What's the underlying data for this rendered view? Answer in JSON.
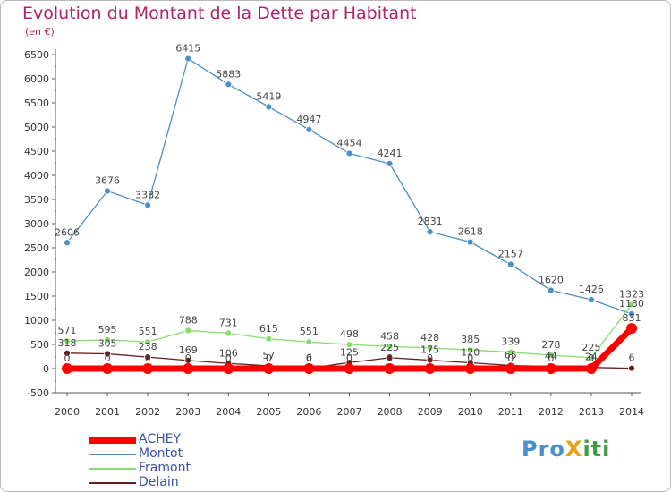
{
  "title": "Evolution du Montant de la Dette par Habitant",
  "subtitle": "(en €)",
  "logo": {
    "part1": "Pro",
    "part2": "X",
    "part3": "iti"
  },
  "chart_data": {
    "type": "line",
    "title": "Evolution du Montant de la Dette par Habitant",
    "ylabel": "(en €)",
    "x": [
      "2000",
      "2001",
      "2002",
      "2003",
      "2004",
      "2005",
      "2006",
      "2007",
      "2008",
      "2009",
      "2010",
      "2011",
      "2012",
      "2013",
      "2014"
    ],
    "ylim": [
      -500,
      6500
    ],
    "yticks": [
      -500,
      0,
      500,
      1000,
      1500,
      2000,
      2500,
      3000,
      3500,
      4000,
      4500,
      5000,
      5500,
      6000,
      6500
    ],
    "grid": false,
    "legend": "bottom-left",
    "series": [
      {
        "name": "ACHEY",
        "color": "#ff0000",
        "values": [
          0,
          0,
          0,
          0,
          0,
          0,
          0,
          0,
          0,
          0,
          0,
          0,
          0,
          0,
          831
        ],
        "labels": [
          "0",
          "0",
          "0",
          "0",
          "0",
          "0",
          "0",
          "0",
          "0",
          "0",
          "0",
          "0",
          "0",
          "0",
          "831"
        ]
      },
      {
        "name": "Montot",
        "color": "#4a8fc9",
        "values": [
          2606,
          3676,
          3382,
          6415,
          5883,
          5419,
          4947,
          4454,
          4241,
          2831,
          2618,
          2157,
          1620,
          1426,
          1130
        ],
        "labels": [
          "2606",
          "3676",
          "3382",
          "6415",
          "5883",
          "5419",
          "4947",
          "4454",
          "4241",
          "2831",
          "2618",
          "2157",
          "1620",
          "1426",
          "1130"
        ]
      },
      {
        "name": "Framont",
        "color": "#86dc6e",
        "values": [
          571,
          595,
          551,
          788,
          731,
          615,
          551,
          498,
          458,
          428,
          385,
          339,
          278,
          225,
          1323
        ],
        "labels": [
          "571",
          "595",
          "551",
          "788",
          "731",
          "615",
          "551",
          "498",
          "458",
          "428",
          "385",
          "339",
          "278",
          "225",
          "1323"
        ]
      },
      {
        "name": "Delain",
        "color": "#6b1d1d",
        "values": [
          318,
          305,
          238,
          169,
          106,
          57,
          6,
          125,
          225,
          175,
          120,
          65,
          44,
          24,
          6
        ],
        "labels": [
          "318",
          "305",
          "238",
          "169",
          "106",
          "57",
          "6",
          "125",
          "225",
          "175",
          "120",
          "65",
          "44",
          "24",
          "6"
        ]
      }
    ]
  }
}
